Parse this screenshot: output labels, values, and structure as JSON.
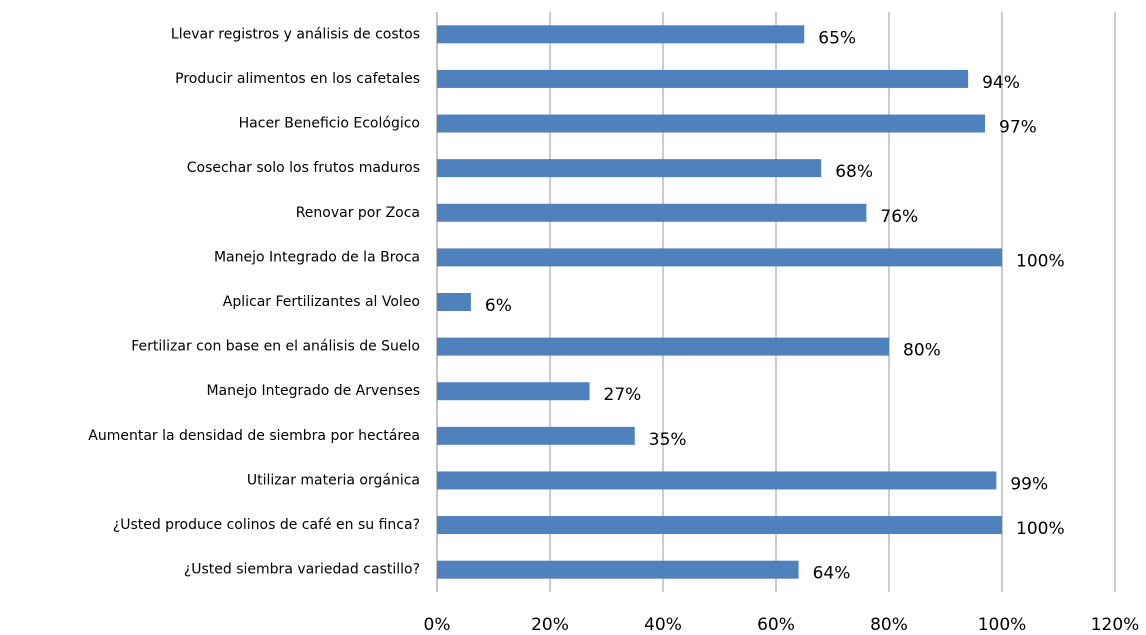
{
  "chart_data": {
    "type": "bar",
    "orientation": "horizontal",
    "categories": [
      "Llevar registros y análisis de costos",
      "Producir alimentos en los cafetales",
      "Hacer Beneficio Ecológico",
      "Cosechar solo los frutos maduros",
      "Renovar por Zoca",
      "Manejo Integrado de la Broca",
      "Aplicar Fertilizantes al Voleo",
      "Fertilizar con base en el análisis de Suelo",
      "Manejo Integrado de Arvenses",
      "Aumentar la densidad de siembra por hectárea",
      "Utilizar materia orgánica",
      "¿Usted produce colinos de café en su finca?",
      "¿Usted siembra variedad castillo?"
    ],
    "values": [
      65,
      94,
      97,
      68,
      76,
      100,
      6,
      80,
      27,
      35,
      99,
      100,
      64
    ],
    "value_labels": [
      "65%",
      "94%",
      "97%",
      "68%",
      "76%",
      "100%",
      "6%",
      "80%",
      "27%",
      "35%",
      "99%",
      "100%",
      "64%"
    ],
    "color": "#4f81bd",
    "xlim": [
      0,
      120
    ],
    "xticks": [
      {
        "value": 0,
        "label": "0%"
      },
      {
        "value": 20,
        "label": "20%"
      },
      {
        "value": 40,
        "label": "40%"
      },
      {
        "value": 60,
        "label": "60%"
      },
      {
        "value": 80,
        "label": "80%"
      },
      {
        "value": 100,
        "label": "100%"
      },
      {
        "value": 120,
        "label": "120%"
      }
    ],
    "grid": true
  }
}
